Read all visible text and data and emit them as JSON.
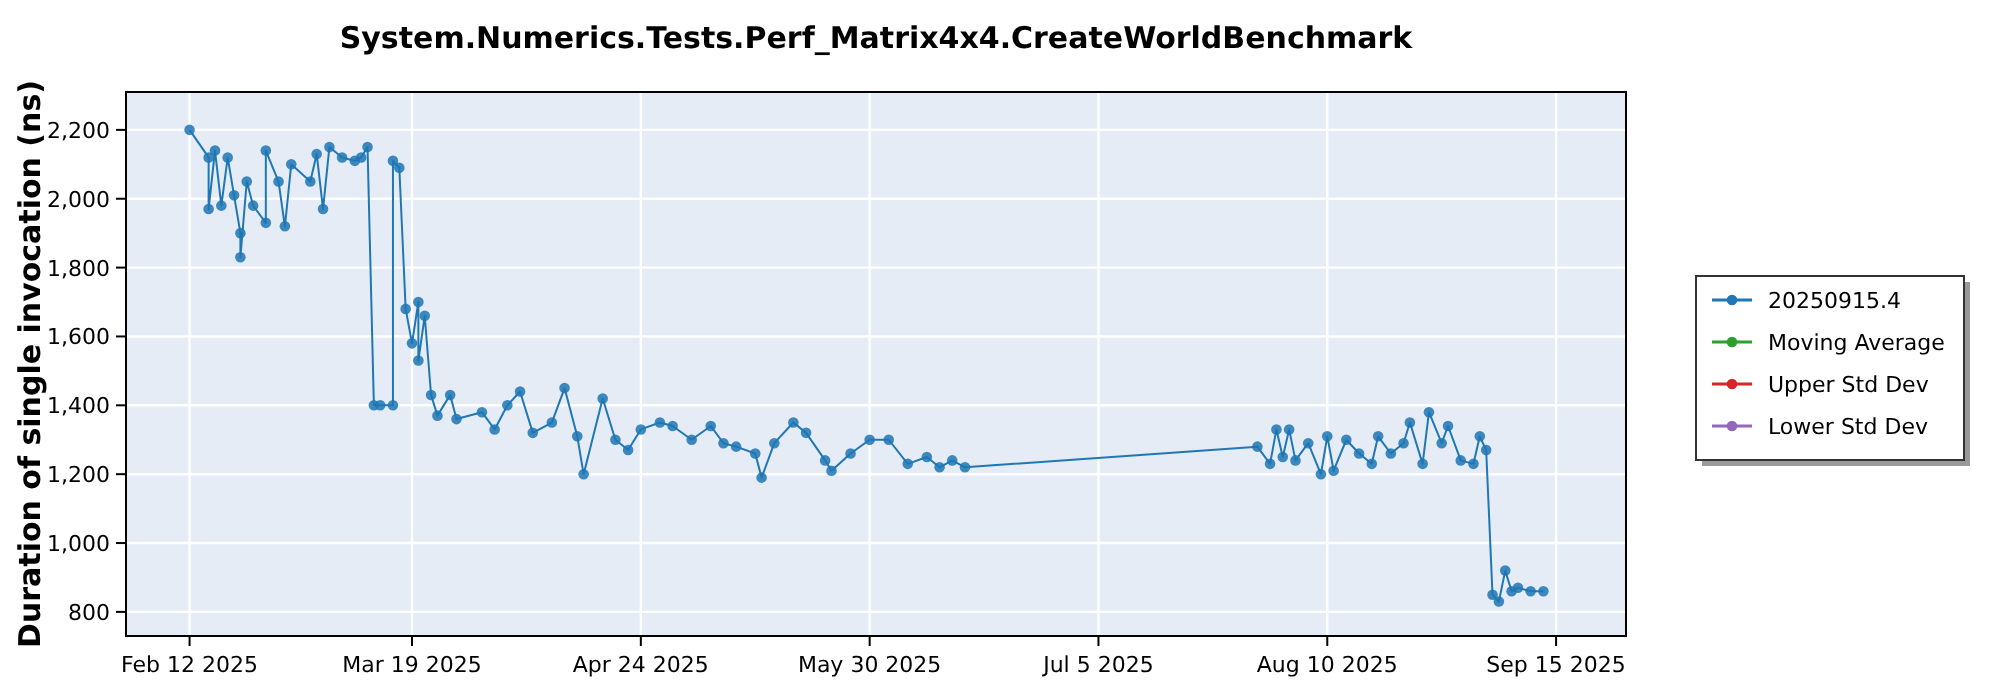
{
  "chart_data": {
    "type": "line",
    "title": "System.Numerics.Tests.Perf_Matrix4x4.CreateWorldBenchmark",
    "ylabel": "Duration of single invocation (ns)",
    "x": [
      "2025-02-12",
      "2025-02-15",
      "2025-02-15",
      "2025-02-16",
      "2025-02-17",
      "2025-02-18",
      "2025-02-19",
      "2025-02-20",
      "2025-02-20",
      "2025-02-21",
      "2025-02-22",
      "2025-02-24",
      "2025-02-24",
      "2025-02-26",
      "2025-02-27",
      "2025-02-28",
      "2025-03-03",
      "2025-03-04",
      "2025-03-05",
      "2025-03-06",
      "2025-03-08",
      "2025-03-10",
      "2025-03-11",
      "2025-03-12",
      "2025-03-13",
      "2025-03-14",
      "2025-03-16",
      "2025-03-16",
      "2025-03-17",
      "2025-03-18",
      "2025-03-19",
      "2025-03-20",
      "2025-03-20",
      "2025-03-21",
      "2025-03-22",
      "2025-03-23",
      "2025-03-25",
      "2025-03-26",
      "2025-03-30",
      "2025-04-01",
      "2025-04-03",
      "2025-04-05",
      "2025-04-07",
      "2025-04-10",
      "2025-04-12",
      "2025-04-14",
      "2025-04-15",
      "2025-04-18",
      "2025-04-20",
      "2025-04-22",
      "2025-04-24",
      "2025-04-27",
      "2025-04-29",
      "2025-05-02",
      "2025-05-05",
      "2025-05-07",
      "2025-05-09",
      "2025-05-12",
      "2025-05-13",
      "2025-05-15",
      "2025-05-18",
      "2025-05-20",
      "2025-05-23",
      "2025-05-24",
      "2025-05-27",
      "2025-05-30",
      "2025-06-02",
      "2025-06-05",
      "2025-06-08",
      "2025-06-10",
      "2025-06-12",
      "2025-06-14",
      "2025-07-30",
      "2025-08-01",
      "2025-08-02",
      "2025-08-03",
      "2025-08-04",
      "2025-08-05",
      "2025-08-07",
      "2025-08-09",
      "2025-08-10",
      "2025-08-11",
      "2025-08-13",
      "2025-08-15",
      "2025-08-17",
      "2025-08-18",
      "2025-08-20",
      "2025-08-22",
      "2025-08-23",
      "2025-08-25",
      "2025-08-26",
      "2025-08-28",
      "2025-08-29",
      "2025-08-31",
      "2025-09-02",
      "2025-09-03",
      "2025-09-04",
      "2025-09-05",
      "2025-09-06",
      "2025-09-07",
      "2025-09-08",
      "2025-09-09",
      "2025-09-11",
      "2025-09-13"
    ],
    "series": [
      {
        "name": "20250915.4",
        "color": "#1f77b4",
        "values": [
          2200,
          2120,
          1970,
          2140,
          1980,
          2120,
          2010,
          1900,
          1830,
          2050,
          1980,
          1930,
          2140,
          2050,
          1920,
          2100,
          2050,
          2130,
          1970,
          2150,
          2120,
          2110,
          2120,
          2150,
          1400,
          1400,
          1400,
          2110,
          2090,
          1680,
          1580,
          1700,
          1530,
          1660,
          1430,
          1370,
          1430,
          1360,
          1380,
          1330,
          1400,
          1440,
          1320,
          1350,
          1450,
          1310,
          1200,
          1420,
          1300,
          1270,
          1330,
          1350,
          1340,
          1300,
          1340,
          1290,
          1280,
          1260,
          1190,
          1290,
          1350,
          1320,
          1240,
          1210,
          1260,
          1300,
          1300,
          1230,
          1250,
          1220,
          1240,
          1220,
          1280,
          1230,
          1330,
          1250,
          1330,
          1240,
          1290,
          1200,
          1310,
          1210,
          1300,
          1260,
          1230,
          1310,
          1260,
          1290,
          1350,
          1230,
          1380,
          1290,
          1340,
          1240,
          1230,
          1310,
          1270,
          850,
          830,
          920,
          860,
          870,
          860,
          860
        ]
      },
      {
        "name": "Moving Average",
        "color": "#2ca02c",
        "values": [
          null,
          null,
          null,
          null,
          null,
          null,
          null,
          null,
          null,
          null,
          null,
          null,
          null,
          null,
          null,
          null,
          null,
          null,
          null,
          null,
          null,
          null,
          null,
          null,
          null,
          null,
          null,
          null,
          null,
          null,
          null,
          null,
          null,
          null,
          null,
          null,
          null,
          null,
          null,
          null,
          null,
          null,
          null,
          null,
          null,
          null,
          null,
          null,
          null,
          null,
          null,
          null,
          null,
          null,
          null,
          null,
          null,
          null,
          null,
          null,
          null,
          null,
          null,
          null,
          null,
          null,
          null,
          null,
          null,
          null,
          null,
          null,
          null,
          null,
          null,
          null,
          null,
          null,
          null,
          null,
          null,
          null,
          null,
          null,
          null,
          null,
          null,
          null,
          null,
          null,
          null,
          null,
          null,
          null,
          null,
          null,
          null,
          null,
          null,
          null,
          null,
          null,
          null,
          null
        ]
      },
      {
        "name": "Upper Std Dev",
        "color": "#d62728",
        "values": [
          null,
          null,
          null,
          null,
          null,
          null,
          null,
          null,
          null,
          null,
          null,
          null,
          null,
          null,
          null,
          null,
          null,
          null,
          null,
          null,
          null,
          null,
          null,
          null,
          null,
          null,
          null,
          null,
          null,
          null,
          null,
          null,
          null,
          null,
          null,
          null,
          null,
          null,
          null,
          null,
          null,
          null,
          null,
          null,
          null,
          null,
          null,
          null,
          null,
          null,
          null,
          null,
          null,
          null,
          null,
          null,
          null,
          null,
          null,
          null,
          null,
          null,
          null,
          null,
          null,
          null,
          null,
          null,
          null,
          null,
          null,
          null,
          null,
          null,
          null,
          null,
          null,
          null,
          null,
          null,
          null,
          null,
          null,
          null,
          null,
          null,
          null,
          null,
          null,
          null,
          null,
          null,
          null,
          null,
          null,
          null,
          null,
          null,
          null,
          null,
          null,
          null,
          null,
          null
        ]
      },
      {
        "name": "Lower Std Dev",
        "color": "#9467bd",
        "values": [
          null,
          null,
          null,
          null,
          null,
          null,
          null,
          null,
          null,
          null,
          null,
          null,
          null,
          null,
          null,
          null,
          null,
          null,
          null,
          null,
          null,
          null,
          null,
          null,
          null,
          null,
          null,
          null,
          null,
          null,
          null,
          null,
          null,
          null,
          null,
          null,
          null,
          null,
          null,
          null,
          null,
          null,
          null,
          null,
          null,
          null,
          null,
          null,
          null,
          null,
          null,
          null,
          null,
          null,
          null,
          null,
          null,
          null,
          null,
          null,
          null,
          null,
          null,
          null,
          null,
          null,
          null,
          null,
          null,
          null,
          null,
          null,
          null,
          null,
          null,
          null,
          null,
          null,
          null,
          null,
          null,
          null,
          null,
          null,
          null,
          null,
          null,
          null,
          null,
          null,
          null,
          null,
          null,
          null,
          null,
          null,
          null,
          null,
          null,
          null,
          null,
          null,
          null,
          null
        ]
      }
    ],
    "xlim": [
      "2025-02-02",
      "2025-09-26"
    ],
    "xticks": [
      {
        "value": "2025-02-12",
        "label": "Feb 12 2025"
      },
      {
        "value": "2025-03-19",
        "label": "Mar 19 2025"
      },
      {
        "value": "2025-04-24",
        "label": "Apr 24 2025"
      },
      {
        "value": "2025-05-30",
        "label": "May 30 2025"
      },
      {
        "value": "2025-07-05",
        "label": "Jul 5 2025"
      },
      {
        "value": "2025-08-10",
        "label": "Aug 10 2025"
      },
      {
        "value": "2025-09-15",
        "label": "Sep 15 2025"
      }
    ],
    "ylim": [
      730,
      2310
    ],
    "yticks": [
      {
        "value": 800,
        "label": "800"
      },
      {
        "value": 1000,
        "label": "1,000"
      },
      {
        "value": 1200,
        "label": "1,200"
      },
      {
        "value": 1400,
        "label": "1,400"
      },
      {
        "value": 1600,
        "label": "1,600"
      },
      {
        "value": 1800,
        "label": "1,800"
      },
      {
        "value": 2000,
        "label": "2,000"
      },
      {
        "value": 2200,
        "label": "2,200"
      }
    ],
    "grid": true,
    "legend": "right",
    "marker": "circle",
    "line_style": "solid"
  }
}
